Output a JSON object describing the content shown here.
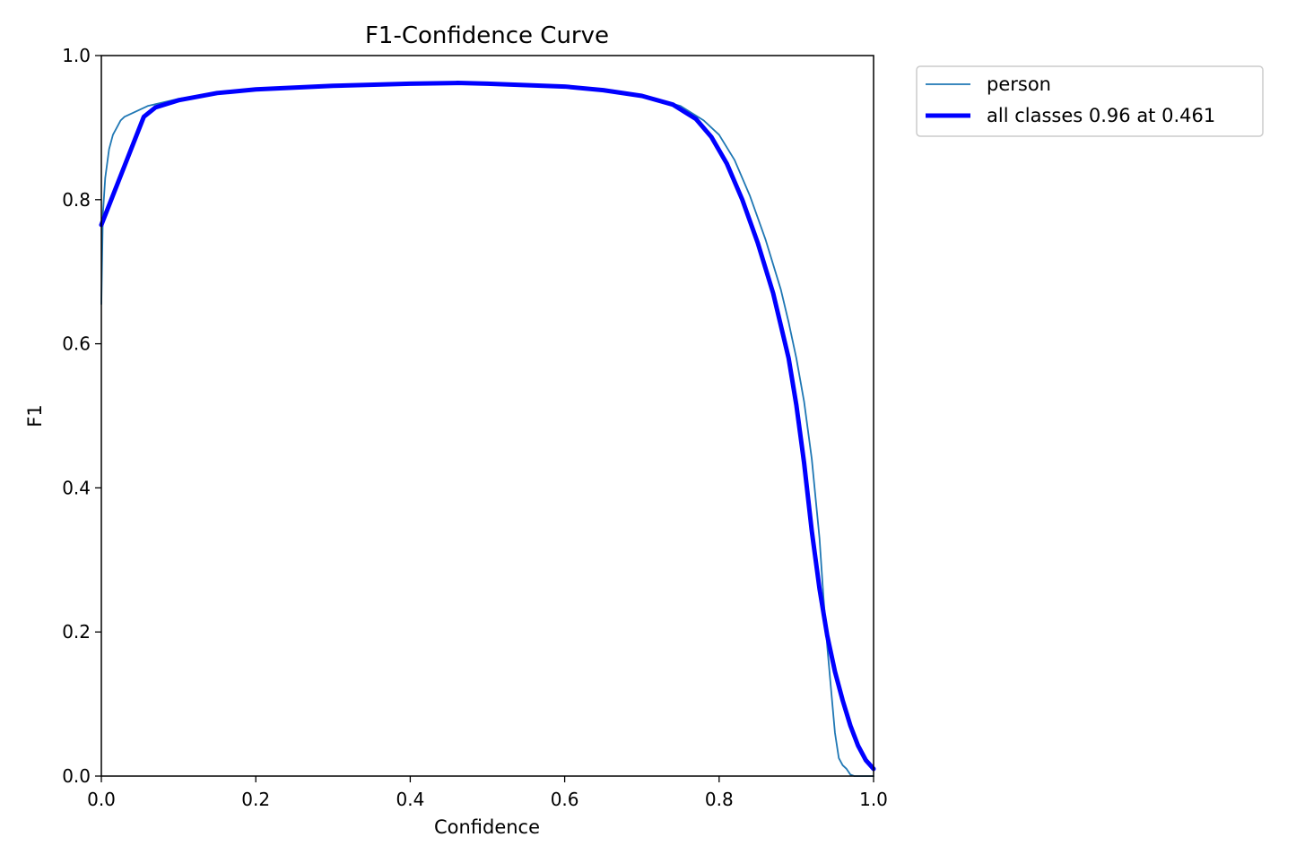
{
  "chart_data": {
    "type": "line",
    "title": "F1-Confidence Curve",
    "xlabel": "Confidence",
    "ylabel": "F1",
    "xlim": [
      0.0,
      1.0
    ],
    "ylim": [
      0.0,
      1.0
    ],
    "xticks": [
      "0.0",
      "0.2",
      "0.4",
      "0.6",
      "0.8",
      "1.0"
    ],
    "yticks": [
      "0.0",
      "0.2",
      "0.4",
      "0.6",
      "0.8",
      "1.0"
    ],
    "grid": false,
    "legend_position": "outside-top-right",
    "series": [
      {
        "name": "person",
        "color": "#1f77b4",
        "style": "thin",
        "x": [
          0.0,
          0.002,
          0.005,
          0.01,
          0.015,
          0.02,
          0.025,
          0.03,
          0.04,
          0.05,
          0.06,
          0.08,
          0.1,
          0.15,
          0.2,
          0.3,
          0.4,
          0.461,
          0.5,
          0.6,
          0.65,
          0.7,
          0.75,
          0.78,
          0.8,
          0.82,
          0.84,
          0.86,
          0.88,
          0.89,
          0.9,
          0.91,
          0.92,
          0.93,
          0.935,
          0.94,
          0.945,
          0.95,
          0.955,
          0.96,
          0.965,
          0.97,
          0.975,
          0.98,
          1.0
        ],
        "y": [
          0.655,
          0.78,
          0.83,
          0.87,
          0.89,
          0.9,
          0.91,
          0.915,
          0.92,
          0.925,
          0.93,
          0.935,
          0.94,
          0.948,
          0.954,
          0.959,
          0.961,
          0.962,
          0.961,
          0.958,
          0.953,
          0.945,
          0.93,
          0.91,
          0.89,
          0.855,
          0.805,
          0.745,
          0.675,
          0.63,
          0.58,
          0.52,
          0.44,
          0.33,
          0.25,
          0.18,
          0.12,
          0.06,
          0.025,
          0.015,
          0.01,
          0.002,
          0.0,
          0.0,
          0.0
        ]
      },
      {
        "name": "all classes 0.96 at 0.461",
        "color": "#0000ff",
        "style": "thick",
        "x": [
          0.0,
          0.055,
          0.07,
          0.1,
          0.15,
          0.2,
          0.3,
          0.4,
          0.461,
          0.5,
          0.6,
          0.65,
          0.7,
          0.74,
          0.77,
          0.79,
          0.81,
          0.83,
          0.85,
          0.87,
          0.89,
          0.9,
          0.91,
          0.92,
          0.93,
          0.94,
          0.95,
          0.96,
          0.97,
          0.98,
          0.99,
          1.0
        ],
        "y": [
          0.765,
          0.915,
          0.928,
          0.938,
          0.948,
          0.953,
          0.958,
          0.961,
          0.962,
          0.961,
          0.957,
          0.952,
          0.944,
          0.932,
          0.912,
          0.887,
          0.85,
          0.8,
          0.74,
          0.67,
          0.58,
          0.515,
          0.435,
          0.34,
          0.26,
          0.195,
          0.145,
          0.105,
          0.07,
          0.042,
          0.022,
          0.01
        ]
      }
    ]
  }
}
